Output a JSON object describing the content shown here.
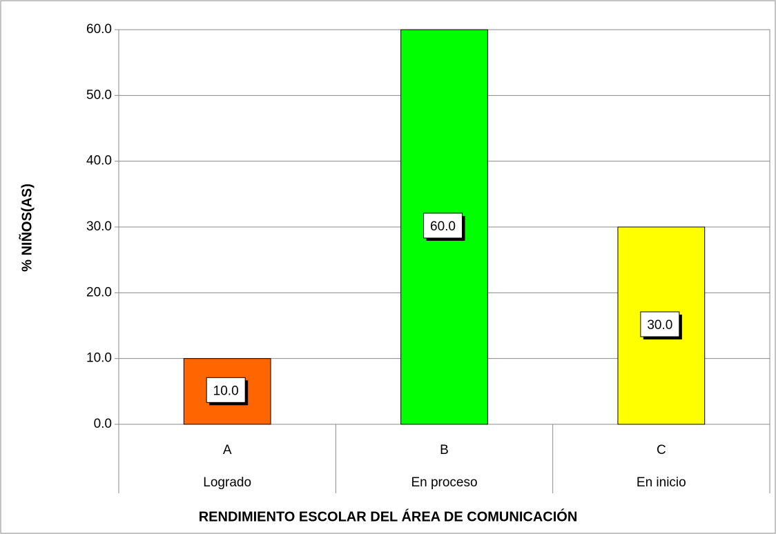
{
  "chart_data": {
    "type": "bar",
    "title": "RENDIMIENTO ESCOLAR DEL ÁREA DE COMUNICACIÓN",
    "y_label": "% NIÑOS(AS)",
    "categories": [
      "A",
      "B",
      "C"
    ],
    "category_groups": [
      "Logrado",
      "En proceso",
      "En inicio"
    ],
    "values": [
      10,
      60,
      30
    ],
    "value_labels": [
      "10.0",
      "60.0",
      "30.0"
    ],
    "colors": [
      "#ff6600",
      "#00ff00",
      "#ffff00"
    ],
    "ylim": [
      0,
      60
    ],
    "yticks": [
      {
        "value": 0,
        "label": "0.0"
      },
      {
        "value": 10,
        "label": "10.0"
      },
      {
        "value": 20,
        "label": "20.0"
      },
      {
        "value": 30,
        "label": "30.0"
      },
      {
        "value": 40,
        "label": "40.0"
      },
      {
        "value": 50,
        "label": "50.0"
      },
      {
        "value": 60,
        "label": "60.0"
      }
    ],
    "grid": true
  }
}
